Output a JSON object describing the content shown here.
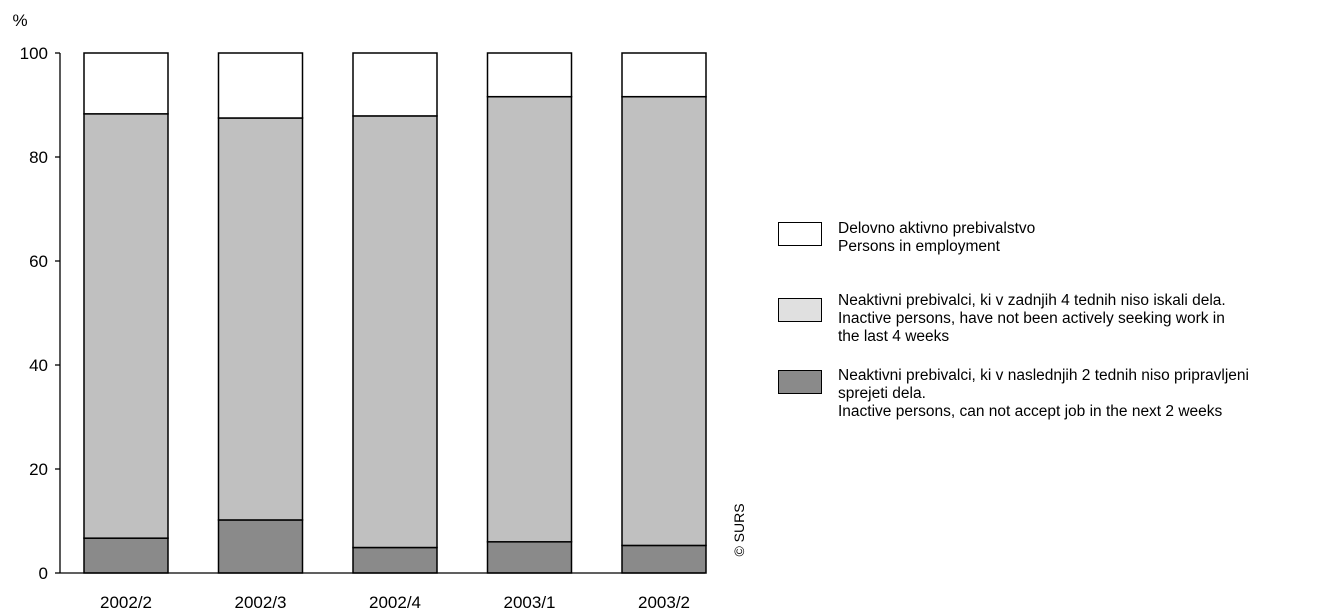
{
  "chart_data": {
    "type": "bar",
    "stacked": true,
    "categories": [
      "2002/2",
      "2002/3",
      "2002/4",
      "2003/1",
      "2003/2"
    ],
    "series": [
      {
        "name": "Neaktivni prebivalci, ki v naslednjih 2 tednih niso pripravljeni sprejeti dela. Inactive persons, can not accept job in the next 2 weeks",
        "color": "#8a8a8a",
        "values": [
          6.7,
          10.2,
          4.9,
          6.0,
          5.3
        ]
      },
      {
        "name": "Neaktivni prebivalci, ki v zadnjih 4 tednih niso iskali dela. Inactive persons, have not been actively seeking work in the last 4 weeks",
        "color": "#c0c0c0",
        "values": [
          81.6,
          77.3,
          83.0,
          85.6,
          86.3
        ]
      },
      {
        "name": "Delovno aktivno prebivalstvo Persons in employment",
        "color": "#ffffff",
        "values": [
          11.7,
          12.5,
          12.1,
          8.4,
          8.4
        ]
      }
    ],
    "ylabel": "%",
    "ylim": [
      0,
      100
    ],
    "yticks": [
      "0",
      "20",
      "40",
      "60",
      "80",
      "100"
    ],
    "grid": false,
    "legend_position": "right",
    "source_label": "© SURS"
  },
  "legend": [
    {
      "color": "#ffffff",
      "lines": [
        "Delovno aktivno prebivalstvo",
        "Persons in employment"
      ]
    },
    {
      "color": "#e0e0e0",
      "lines": [
        "Neaktivni prebivalci, ki v zadnjih 4 tednih niso iskali dela.",
        "Inactive persons, have not been actively seeking work in",
        "the last 4 weeks"
      ]
    },
    {
      "color": "#8a8a8a",
      "lines": [
        "Neaktivni prebivalci, ki v naslednjih 2 tednih niso pripravljeni",
        "sprejeti dela.",
        "Inactive persons, can not accept job in the next 2 weeks"
      ]
    }
  ]
}
